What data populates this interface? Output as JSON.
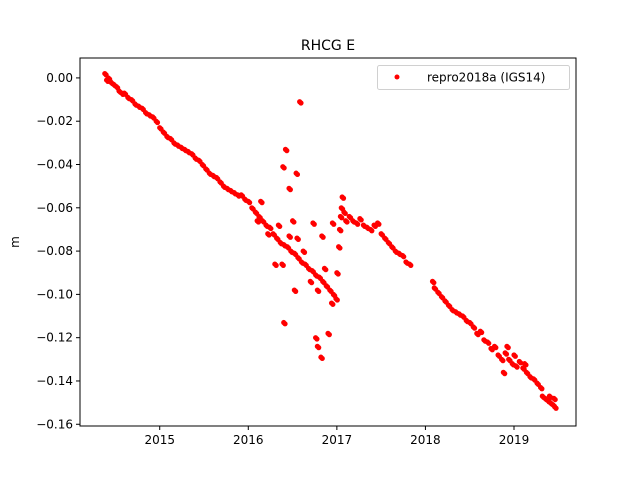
{
  "chart_data": {
    "type": "scatter",
    "title": "RHCG E",
    "xlabel": "",
    "ylabel": "m",
    "xlim": [
      2014.1,
      2019.7
    ],
    "ylim": [
      -0.1608,
      0.0092
    ],
    "xticks": [
      2015,
      2016,
      2017,
      2018,
      2019
    ],
    "xtick_labels": [
      "2015",
      "2016",
      "2017",
      "2018",
      "2019"
    ],
    "yticks": [
      0.0,
      -0.02,
      -0.04,
      -0.06,
      -0.08,
      -0.1,
      -0.12,
      -0.14,
      -0.16
    ],
    "ytick_labels": [
      "0.00",
      "−0.02",
      "−0.04",
      "−0.06",
      "−0.08",
      "−0.10",
      "−0.12",
      "−0.14",
      "−0.16"
    ],
    "grid": false,
    "legend_position": "top-right",
    "series": [
      {
        "name": "repro2018a (IGS14)",
        "color": "#ff0000",
        "marker": "circle",
        "points": [
          [
            2014.38,
            0.002
          ],
          [
            2014.4,
            -0.001
          ],
          [
            2014.42,
            0.0
          ],
          [
            2014.45,
            -0.002
          ],
          [
            2014.48,
            -0.003
          ],
          [
            2014.51,
            -0.004
          ],
          [
            2014.54,
            -0.006
          ],
          [
            2014.57,
            -0.007
          ],
          [
            2014.6,
            -0.007
          ],
          [
            2014.64,
            -0.009
          ],
          [
            2014.68,
            -0.01
          ],
          [
            2014.72,
            -0.012
          ],
          [
            2014.76,
            -0.013
          ],
          [
            2014.8,
            -0.014
          ],
          [
            2014.84,
            -0.016
          ],
          [
            2014.88,
            -0.017
          ],
          [
            2014.92,
            -0.018
          ],
          [
            2014.96,
            -0.02
          ],
          [
            2015.0,
            -0.023
          ],
          [
            2015.04,
            -0.025
          ],
          [
            2015.08,
            -0.027
          ],
          [
            2015.12,
            -0.028
          ],
          [
            2015.16,
            -0.03
          ],
          [
            2015.2,
            -0.031
          ],
          [
            2015.24,
            -0.032
          ],
          [
            2015.28,
            -0.033
          ],
          [
            2015.32,
            -0.034
          ],
          [
            2015.36,
            -0.035
          ],
          [
            2015.4,
            -0.037
          ],
          [
            2015.44,
            -0.038
          ],
          [
            2015.48,
            -0.04
          ],
          [
            2015.52,
            -0.042
          ],
          [
            2015.56,
            -0.044
          ],
          [
            2015.6,
            -0.045
          ],
          [
            2015.64,
            -0.046
          ],
          [
            2015.68,
            -0.048
          ],
          [
            2015.72,
            -0.05
          ],
          [
            2015.76,
            -0.051
          ],
          [
            2015.8,
            -0.052
          ],
          [
            2015.84,
            -0.053
          ],
          [
            2015.88,
            -0.054
          ],
          [
            2015.92,
            -0.054
          ],
          [
            2015.96,
            -0.056
          ],
          [
            2016.0,
            -0.057
          ],
          [
            2016.04,
            -0.06
          ],
          [
            2016.08,
            -0.062
          ],
          [
            2016.12,
            -0.064
          ],
          [
            2016.16,
            -0.066
          ],
          [
            2016.2,
            -0.068
          ],
          [
            2016.24,
            -0.069
          ],
          [
            2016.28,
            -0.072
          ],
          [
            2016.32,
            -0.074
          ],
          [
            2016.36,
            -0.076
          ],
          [
            2016.4,
            -0.077
          ],
          [
            2016.44,
            -0.078
          ],
          [
            2016.48,
            -0.08
          ],
          [
            2016.52,
            -0.081
          ],
          [
            2016.56,
            -0.083
          ],
          [
            2016.6,
            -0.085
          ],
          [
            2016.64,
            -0.086
          ],
          [
            2016.68,
            -0.088
          ],
          [
            2016.72,
            -0.089
          ],
          [
            2016.76,
            -0.091
          ],
          [
            2016.8,
            -0.092
          ],
          [
            2016.84,
            -0.094
          ],
          [
            2016.88,
            -0.096
          ],
          [
            2016.92,
            -0.098
          ],
          [
            2016.96,
            -0.1
          ],
          [
            2016.99,
            -0.102
          ],
          [
            2016.1,
            -0.066
          ],
          [
            2016.14,
            -0.057
          ],
          [
            2016.22,
            -0.072
          ],
          [
            2016.3,
            -0.086
          ],
          [
            2016.38,
            -0.086
          ],
          [
            2016.46,
            -0.073
          ],
          [
            2016.55,
            -0.074
          ],
          [
            2016.62,
            -0.08
          ],
          [
            2016.7,
            -0.094
          ],
          [
            2016.78,
            -0.098
          ],
          [
            2016.86,
            -0.088
          ],
          [
            2016.94,
            -0.104
          ],
          [
            2016.58,
            -0.011
          ],
          [
            2016.42,
            -0.033
          ],
          [
            2016.39,
            -0.041
          ],
          [
            2016.54,
            -0.044
          ],
          [
            2016.46,
            -0.051
          ],
          [
            2016.4,
            -0.113
          ],
          [
            2016.52,
            -0.098
          ],
          [
            2016.76,
            -0.12
          ],
          [
            2016.78,
            -0.124
          ],
          [
            2016.82,
            -0.129
          ],
          [
            2016.9,
            -0.118
          ],
          [
            2016.73,
            -0.067
          ],
          [
            2016.83,
            -0.073
          ],
          [
            2016.95,
            -0.067
          ],
          [
            2016.5,
            -0.066
          ],
          [
            2016.34,
            -0.068
          ],
          [
            2017.0,
            -0.09
          ],
          [
            2017.02,
            -0.078
          ],
          [
            2017.03,
            -0.07
          ],
          [
            2017.04,
            -0.064
          ],
          [
            2017.05,
            -0.06
          ],
          [
            2017.06,
            -0.055
          ],
          [
            2017.08,
            -0.062
          ],
          [
            2017.1,
            -0.066
          ],
          [
            2017.14,
            -0.064
          ],
          [
            2017.18,
            -0.066
          ],
          [
            2017.22,
            -0.067
          ],
          [
            2017.26,
            -0.065
          ],
          [
            2017.3,
            -0.068
          ],
          [
            2017.34,
            -0.069
          ],
          [
            2017.38,
            -0.07
          ],
          [
            2017.42,
            -0.068
          ],
          [
            2017.46,
            -0.067
          ],
          [
            2017.5,
            -0.072
          ],
          [
            2017.54,
            -0.074
          ],
          [
            2017.58,
            -0.076
          ],
          [
            2017.62,
            -0.078
          ],
          [
            2017.66,
            -0.08
          ],
          [
            2017.7,
            -0.081
          ],
          [
            2017.74,
            -0.082
          ],
          [
            2017.78,
            -0.085
          ],
          [
            2017.82,
            -0.086
          ],
          [
            2018.08,
            -0.094
          ],
          [
            2018.1,
            -0.097
          ],
          [
            2018.14,
            -0.099
          ],
          [
            2018.18,
            -0.101
          ],
          [
            2018.22,
            -0.103
          ],
          [
            2018.26,
            -0.105
          ],
          [
            2018.3,
            -0.107
          ],
          [
            2018.34,
            -0.108
          ],
          [
            2018.38,
            -0.109
          ],
          [
            2018.42,
            -0.11
          ],
          [
            2018.46,
            -0.112
          ],
          [
            2018.5,
            -0.113
          ],
          [
            2018.54,
            -0.115
          ],
          [
            2018.58,
            -0.118
          ],
          [
            2018.62,
            -0.117
          ],
          [
            2018.66,
            -0.121
          ],
          [
            2018.7,
            -0.122
          ],
          [
            2018.74,
            -0.125
          ],
          [
            2018.78,
            -0.124
          ],
          [
            2018.82,
            -0.128
          ],
          [
            2018.86,
            -0.13
          ],
          [
            2018.9,
            -0.127
          ],
          [
            2018.94,
            -0.13
          ],
          [
            2018.98,
            -0.132
          ],
          [
            2019.02,
            -0.133
          ],
          [
            2019.06,
            -0.131
          ],
          [
            2019.1,
            -0.134
          ],
          [
            2019.14,
            -0.136
          ],
          [
            2019.18,
            -0.138
          ],
          [
            2019.22,
            -0.139
          ],
          [
            2019.26,
            -0.141
          ],
          [
            2019.3,
            -0.143
          ],
          [
            2018.88,
            -0.136
          ],
          [
            2018.92,
            -0.124
          ],
          [
            2019.0,
            -0.128
          ],
          [
            2019.12,
            -0.132
          ],
          [
            2019.32,
            -0.147
          ],
          [
            2019.35,
            -0.148
          ],
          [
            2019.38,
            -0.149
          ],
          [
            2019.41,
            -0.15
          ],
          [
            2019.44,
            -0.151
          ],
          [
            2019.46,
            -0.152
          ],
          [
            2019.4,
            -0.147
          ],
          [
            2019.45,
            -0.148
          ]
        ]
      }
    ]
  }
}
